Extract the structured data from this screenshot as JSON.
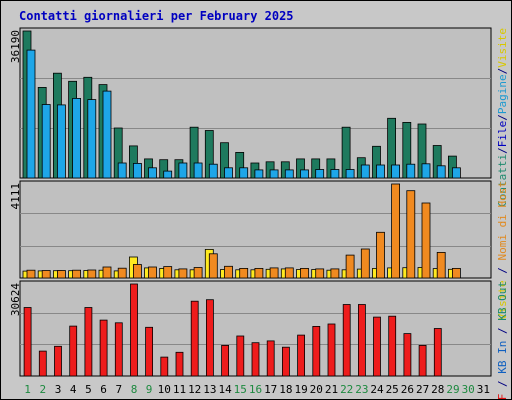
{
  "chart_data": [
    {
      "type": "bar",
      "title": "Contatti giornalieri per February 2025",
      "panel": "top",
      "ymax_label": "36190",
      "ymax": 36190,
      "right_labels": [
        {
          "text": "Contatti",
          "color": "#1e8a6e"
        },
        {
          "text": "/",
          "color": "#000080"
        },
        {
          "text": "File",
          "color": "#0000c0"
        },
        {
          "text": "/",
          "color": "#000080"
        },
        {
          "text": "Pagine",
          "color": "#1e9ad0"
        },
        {
          "text": "/",
          "color": "#000080"
        },
        {
          "text": "Visite",
          "color": "#d8c800"
        }
      ],
      "series": [
        {
          "name": "Contatti",
          "color": "#1e7a5e",
          "values": [
            36190,
            22300,
            25800,
            23800,
            24800,
            23000,
            12300,
            7900,
            4700,
            4500,
            4500,
            12500,
            11700,
            8700,
            6300,
            3700,
            4000,
            4000,
            4700,
            4700,
            4700,
            12500,
            5000,
            7800,
            14700,
            13700,
            13300,
            8000,
            5400,
            0,
            0
          ]
        },
        {
          "name": "File",
          "color": "#1ea6e8",
          "values": [
            31500,
            18100,
            18000,
            19600,
            19300,
            21400,
            3700,
            3600,
            2500,
            1700,
            3700,
            3700,
            3400,
            2500,
            2500,
            2000,
            2000,
            2000,
            2000,
            2100,
            2100,
            2100,
            3200,
            3200,
            3200,
            3400,
            3500,
            3000,
            2500,
            0,
            0
          ]
        }
      ]
    },
    {
      "type": "bar",
      "panel": "middle",
      "ymax_label": "4111",
      "ymax": 4111,
      "right_labels": [
        {
          "text": "Visite",
          "color": "#d8c800"
        },
        {
          "text": " / ",
          "color": "#000080"
        },
        {
          "text": "Nomi di Host",
          "color": "#e08a20"
        }
      ],
      "series": [
        {
          "name": "Visite",
          "color": "#ffea20",
          "values": [
            300,
            310,
            320,
            320,
            330,
            340,
            310,
            920,
            440,
            420,
            360,
            360,
            1250,
            370,
            360,
            360,
            380,
            400,
            370,
            370,
            340,
            360,
            390,
            420,
            440,
            450,
            460,
            410,
            380,
            0,
            0
          ]
        },
        {
          "name": "Nomi di Host",
          "color": "#f08a20",
          "values": [
            340,
            330,
            330,
            340,
            350,
            480,
            430,
            590,
            480,
            500,
            400,
            460,
            1060,
            510,
            420,
            420,
            440,
            440,
            420,
            400,
            400,
            1000,
            1270,
            2000,
            4111,
            3820,
            3280,
            1120,
            420,
            0,
            0
          ]
        }
      ]
    },
    {
      "type": "bar",
      "panel": "bottom",
      "ymax_label": "30624",
      "ymax": 30624,
      "right_labels": [
        {
          "text": "KB F",
          "color": "#e01010"
        },
        {
          "text": " / ",
          "color": "#000080"
        },
        {
          "text": "KB In",
          "color": "#1060c0"
        },
        {
          "text": " / ",
          "color": "#000080"
        },
        {
          "text": "KB Out",
          "color": "#1e8a6e"
        }
      ],
      "series": [
        {
          "name": "KB F",
          "color": "#ee1c1c",
          "values": [
            22800,
            8300,
            9900,
            16600,
            22800,
            18600,
            17700,
            30624,
            16200,
            6300,
            7900,
            24900,
            25400,
            10200,
            13300,
            11100,
            11700,
            9600,
            13600,
            16500,
            17300,
            23800,
            23800,
            19600,
            19900,
            14100,
            10200,
            15800,
            0,
            0,
            0
          ]
        }
      ]
    }
  ],
  "x": {
    "categories": [
      "1",
      "2",
      "3",
      "4",
      "5",
      "6",
      "7",
      "8",
      "9",
      "10",
      "11",
      "12",
      "13",
      "14",
      "15",
      "16",
      "17",
      "18",
      "19",
      "20",
      "21",
      "22",
      "23",
      "24",
      "25",
      "26",
      "27",
      "28",
      "29",
      "30",
      "31"
    ],
    "weekend_days": [
      "1",
      "2",
      "8",
      "9",
      "15",
      "16",
      "22",
      "23",
      "29",
      "30"
    ],
    "weekend_color": "#1e8a40",
    "weekday_color": "#000000"
  },
  "colors": {
    "background": "#c8c8c8",
    "panel_bg": "#c0c0c0",
    "title": "#0000c0"
  }
}
